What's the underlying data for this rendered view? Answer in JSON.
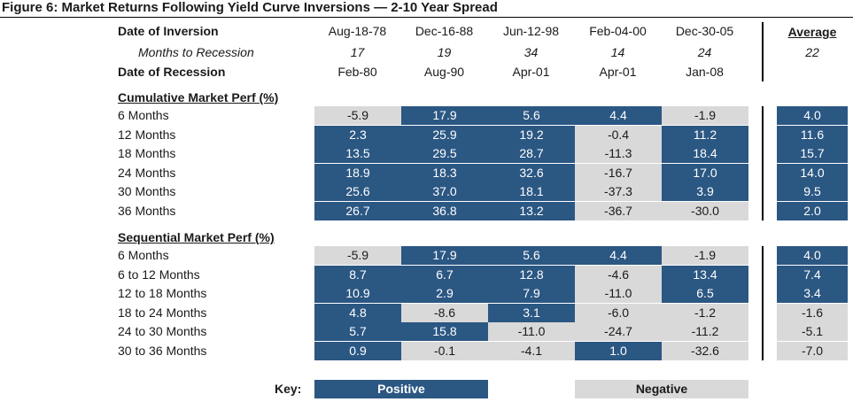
{
  "title": "Figure 6: Market Returns Following Yield Curve Inversions — 2-10 Year Spread",
  "header_labels": {
    "inversion": "Date of Inversion",
    "months": "Months to Recession",
    "recession": "Date of Recession"
  },
  "columns": [
    {
      "inversion": "Aug-18-78",
      "months": "17",
      "recession": "Feb-80"
    },
    {
      "inversion": "Dec-16-88",
      "months": "19",
      "recession": "Aug-90"
    },
    {
      "inversion": "Jun-12-98",
      "months": "34",
      "recession": "Apr-01"
    },
    {
      "inversion": "Feb-04-00",
      "months": "14",
      "recession": "Apr-01"
    },
    {
      "inversion": "Dec-30-05",
      "months": "24",
      "recession": "Jan-08"
    }
  ],
  "average": {
    "label": "Average",
    "months": "22"
  },
  "sections": [
    {
      "title": "Cumulative Market Perf (%)",
      "rows": [
        {
          "label": "6 Months",
          "values": [
            "-5.9",
            "17.9",
            "5.6",
            "4.4",
            "-1.9"
          ],
          "average": "4.0"
        },
        {
          "label": "12 Months",
          "values": [
            "2.3",
            "25.9",
            "19.2",
            "-0.4",
            "11.2"
          ],
          "average": "11.6"
        },
        {
          "label": "18 Months",
          "values": [
            "13.5",
            "29.5",
            "28.7",
            "-11.3",
            "18.4"
          ],
          "average": "15.7"
        },
        {
          "label": "24 Months",
          "values": [
            "18.9",
            "18.3",
            "32.6",
            "-16.7",
            "17.0"
          ],
          "average": "14.0"
        },
        {
          "label": "30 Months",
          "values": [
            "25.6",
            "37.0",
            "18.1",
            "-37.3",
            "3.9"
          ],
          "average": "9.5"
        },
        {
          "label": "36 Months",
          "values": [
            "26.7",
            "36.8",
            "13.2",
            "-36.7",
            "-30.0"
          ],
          "average": "2.0"
        }
      ]
    },
    {
      "title": "Sequential Market Perf (%)",
      "rows": [
        {
          "label": "6 Months",
          "values": [
            "-5.9",
            "17.9",
            "5.6",
            "4.4",
            "-1.9"
          ],
          "average": "4.0"
        },
        {
          "label": "6 to 12 Months",
          "values": [
            "8.7",
            "6.7",
            "12.8",
            "-4.6",
            "13.4"
          ],
          "average": "7.4"
        },
        {
          "label": "12 to 18 Months",
          "values": [
            "10.9",
            "2.9",
            "7.9",
            "-11.0",
            "6.5"
          ],
          "average": "3.4"
        },
        {
          "label": "18 to 24 Months",
          "values": [
            "4.8",
            "-8.6",
            "3.1",
            "-6.0",
            "-1.2"
          ],
          "average": "-1.6"
        },
        {
          "label": "24 to 30 Months",
          "values": [
            "5.7",
            "15.8",
            "-11.0",
            "-24.7",
            "-11.2"
          ],
          "average": "-5.1"
        },
        {
          "label": "30 to 36 Months",
          "values": [
            "0.9",
            "-0.1",
            "-4.1",
            "1.0",
            "-32.6"
          ],
          "average": "-7.0"
        }
      ]
    }
  ],
  "key": {
    "label": "Key:",
    "positive": "Positive",
    "negative": "Negative"
  },
  "colors": {
    "positive": "#2b5783",
    "negative": "#d9d9d9"
  }
}
